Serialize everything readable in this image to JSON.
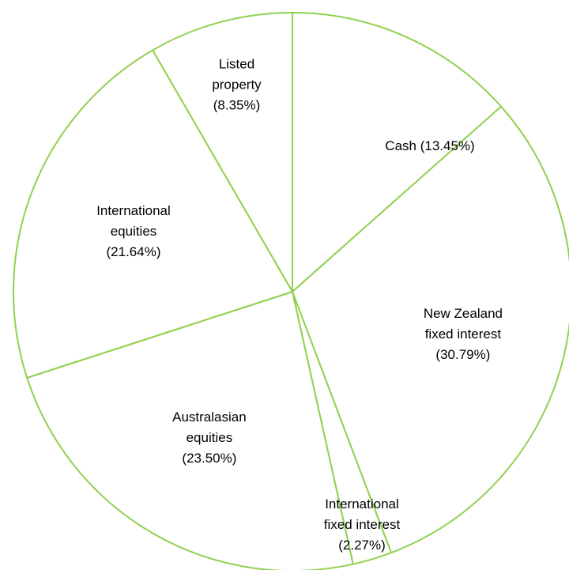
{
  "chart_data": {
    "type": "pie",
    "title": "",
    "colors": {
      "slice_fill": "#ffffff",
      "slice_edge": "#92d050",
      "label_text": "#000000"
    },
    "slices": [
      {
        "label_lines": [
          "Cash (13.45%)"
        ],
        "value": 13.45
      },
      {
        "label_lines": [
          "New Zealand",
          "fixed interest",
          "(30.79%)"
        ],
        "value": 30.79
      },
      {
        "label_lines": [
          "International",
          "fixed interest",
          "(2.27%)"
        ],
        "value": 2.27
      },
      {
        "label_lines": [
          "Australasian",
          "equities",
          "(23.50%)"
        ],
        "value": 23.5
      },
      {
        "label_lines": [
          "International",
          "equities",
          "(21.64%)"
        ],
        "value": 21.64
      },
      {
        "label_lines": [
          "Listed",
          "property",
          "(8.35%)"
        ],
        "value": 8.35
      }
    ],
    "start": "12 o'clock",
    "direction": "clockwise",
    "legend": "none",
    "labels": "inside slices"
  }
}
